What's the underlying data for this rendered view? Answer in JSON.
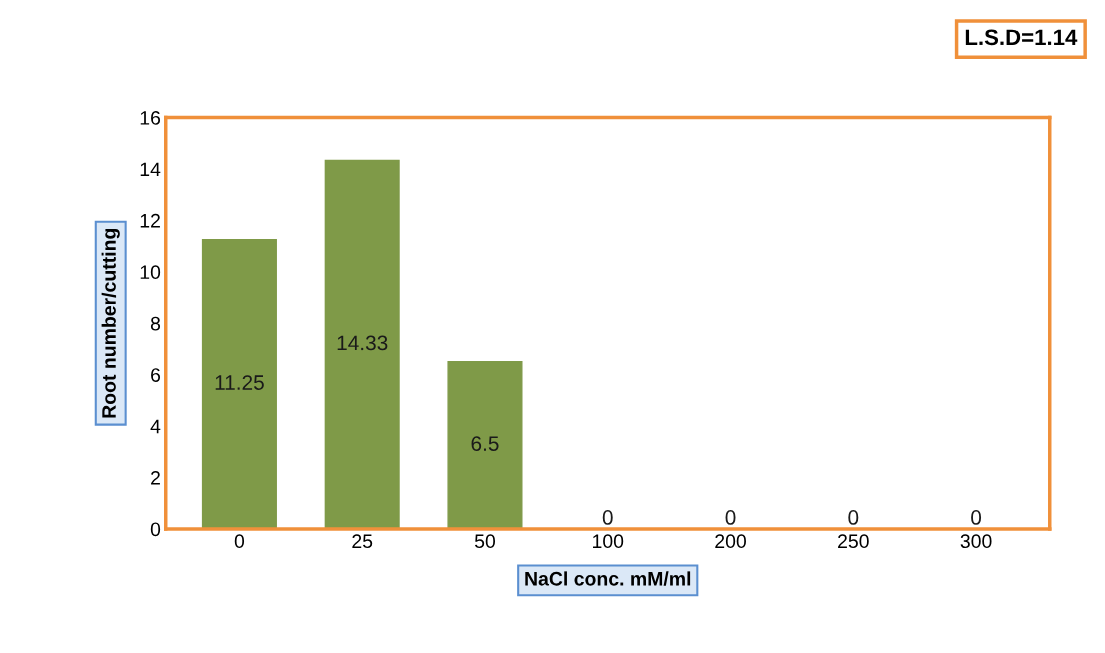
{
  "chart_data": {
    "type": "bar",
    "xlabel": "NaCl conc. mM/ml",
    "ylabel": "Root number/cutting",
    "categories": [
      "0",
      "25",
      "50",
      "100",
      "200",
      "250",
      "300"
    ],
    "values": [
      11.25,
      14.33,
      6.5,
      0,
      0,
      0,
      0
    ],
    "color": "#7f9a48",
    "data_labels": true,
    "ylim": [
      0,
      16
    ],
    "yticks": [
      0,
      2,
      4,
      6,
      8,
      10,
      12,
      14,
      16
    ],
    "grid": false,
    "legend": false,
    "annotations": [
      "L.S.D=1.14"
    ]
  }
}
